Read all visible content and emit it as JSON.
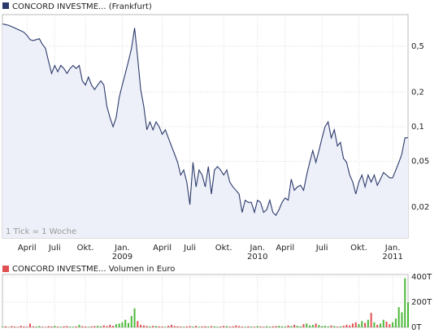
{
  "chart_data": [
    {
      "type": "line",
      "annotation": "1 Tick = 1 Woche",
      "categories": [
        null,
        null,
        null,
        null,
        null,
        null,
        null,
        null,
        "April",
        null,
        null,
        null,
        null,
        null,
        null,
        null,
        null,
        "Juli",
        null,
        null,
        null,
        null,
        null,
        null,
        null,
        null,
        null,
        "Okt.",
        null,
        null,
        null,
        null,
        null,
        null,
        null,
        null,
        null,
        null,
        null,
        "Jan.",
        null,
        null,
        null,
        null,
        null,
        null,
        null,
        null,
        null,
        null,
        null,
        null,
        "April",
        null,
        null,
        null,
        null,
        null,
        null,
        null,
        null,
        "Juli",
        null,
        null,
        null,
        null,
        null,
        null,
        null,
        null,
        null,
        null,
        "Okt.",
        null,
        null,
        null,
        null,
        null,
        null,
        null,
        null,
        null,
        null,
        "Jan.",
        null,
        null,
        null,
        null,
        null,
        null,
        null,
        null,
        "April",
        null,
        null,
        null,
        null,
        null,
        null,
        null,
        null,
        null,
        null,
        null,
        "Juli",
        null,
        null,
        null,
        null,
        null,
        null,
        null,
        null,
        null,
        null,
        null,
        "Okt.",
        null,
        null,
        null,
        null,
        null,
        null,
        null,
        null,
        null,
        null,
        "Jan.",
        null,
        null,
        null,
        null,
        null
      ],
      "category_years": [
        null,
        null,
        null,
        null,
        null,
        null,
        null,
        null,
        null,
        null,
        null,
        null,
        null,
        null,
        null,
        null,
        null,
        null,
        null,
        null,
        null,
        null,
        null,
        null,
        null,
        null,
        null,
        null,
        null,
        null,
        null,
        null,
        null,
        null,
        null,
        null,
        null,
        null,
        null,
        "2009",
        null,
        null,
        null,
        null,
        null,
        null,
        null,
        null,
        null,
        null,
        null,
        null,
        null,
        null,
        null,
        null,
        null,
        null,
        null,
        null,
        null,
        null,
        null,
        null,
        null,
        null,
        null,
        null,
        null,
        null,
        null,
        null,
        null,
        null,
        null,
        null,
        null,
        null,
        null,
        null,
        null,
        null,
        null,
        "2010",
        null,
        null,
        null,
        null,
        null,
        null,
        null,
        null,
        null,
        null,
        null,
        null,
        null,
        null,
        null,
        null,
        null,
        null,
        null,
        null,
        null,
        null,
        null,
        null,
        null,
        null,
        null,
        null,
        null,
        null,
        null,
        null,
        null,
        null,
        null,
        null,
        null,
        null,
        null,
        null,
        null,
        null,
        null,
        "2011",
        null,
        null,
        null,
        null,
        null
      ],
      "series": [
        {
          "name": "CONCORD INVESTME... (Frankfurt)",
          "color": "#2b3a6b",
          "fill": "#eef0f9",
          "values": [
            0.78,
            0.77,
            0.76,
            0.74,
            0.72,
            0.7,
            0.68,
            0.66,
            0.62,
            0.57,
            0.56,
            0.57,
            0.58,
            0.52,
            0.48,
            0.37,
            0.29,
            0.34,
            0.3,
            0.34,
            0.32,
            0.29,
            0.32,
            0.34,
            0.32,
            0.34,
            0.25,
            0.23,
            0.27,
            0.23,
            0.21,
            0.23,
            0.25,
            0.23,
            0.15,
            0.12,
            0.1,
            0.12,
            0.18,
            0.23,
            0.29,
            0.37,
            0.48,
            0.72,
            0.4,
            0.21,
            0.15,
            0.094,
            0.11,
            0.094,
            0.11,
            0.1,
            0.086,
            0.094,
            0.08,
            0.068,
            0.058,
            0.049,
            0.038,
            0.042,
            0.033,
            0.021,
            0.049,
            0.03,
            0.042,
            0.038,
            0.03,
            0.045,
            0.026,
            0.042,
            0.045,
            0.042,
            0.038,
            0.042,
            0.033,
            0.03,
            0.028,
            0.026,
            0.018,
            0.023,
            0.022,
            0.022,
            0.018,
            0.023,
            0.022,
            0.018,
            0.019,
            0.023,
            0.018,
            0.017,
            0.019,
            0.022,
            0.024,
            0.023,
            0.035,
            0.028,
            0.03,
            0.031,
            0.028,
            0.038,
            0.049,
            0.062,
            0.049,
            0.062,
            0.08,
            0.1,
            0.11,
            0.08,
            0.094,
            0.068,
            0.073,
            0.053,
            0.049,
            0.038,
            0.033,
            0.026,
            0.033,
            0.038,
            0.03,
            0.038,
            0.033,
            0.038,
            0.031,
            0.035,
            0.04,
            0.038,
            0.036,
            0.036,
            0.042,
            0.049,
            0.058,
            0.08,
            0.08
          ]
        }
      ],
      "log_scale": true,
      "grid": true,
      "ylim": [
        0.0108,
        0.94
      ],
      "yticks": [
        {
          "value": 0.5,
          "label": "0,5"
        },
        {
          "value": 0.2,
          "label": "0,2"
        },
        {
          "value": 0.1,
          "label": "0,1"
        },
        {
          "value": 0.05,
          "label": "0,05"
        },
        {
          "value": 0.02,
          "label": "0,02"
        }
      ]
    },
    {
      "type": "bar",
      "series": [
        {
          "name": "CONCORD INVESTME... Volumen in Euro",
          "color": "#e05050",
          "up_color": "#4cb83a",
          "values": [
            5000,
            8000,
            3000,
            10000,
            6000,
            4000,
            12000,
            7000,
            5000,
            30000,
            8000,
            6000,
            10000,
            5000,
            4000,
            9000,
            7000,
            12000,
            6000,
            5000,
            8000,
            10000,
            6000,
            5000,
            7000,
            20000,
            9000,
            6000,
            5000,
            8000,
            10000,
            12000,
            8000,
            15000,
            10000,
            20000,
            12000,
            25000,
            30000,
            40000,
            60000,
            35000,
            90000,
            150000,
            50000,
            20000,
            15000,
            10000,
            8000,
            12000,
            10000,
            8000,
            6000,
            5000,
            12000,
            20000,
            10000,
            8000,
            6000,
            5000,
            8000,
            10000,
            6000,
            12000,
            5000,
            7000,
            9000,
            6000,
            10000,
            8000,
            5000,
            7000,
            12000,
            10000,
            6000,
            8000,
            15000,
            10000,
            6000,
            5000,
            8000,
            6000,
            5000,
            10000,
            7000,
            5000,
            9000,
            6000,
            8000,
            10000,
            12000,
            8000,
            6000,
            15000,
            10000,
            20000,
            12000,
            8000,
            25000,
            30000,
            15000,
            20000,
            30000,
            18000,
            10000,
            12000,
            8000,
            15000,
            10000,
            6000,
            8000,
            12000,
            20000,
            15000,
            30000,
            40000,
            25000,
            50000,
            35000,
            60000,
            115000,
            40000,
            20000,
            30000,
            60000,
            45000,
            25000,
            40000,
            70000,
            160000,
            120000,
            390000,
            200000
          ]
        }
      ],
      "grid": true,
      "ylim": [
        0,
        420000
      ],
      "yticks": [
        {
          "value": 0,
          "label": "0T"
        },
        {
          "value": 200000,
          "label": "200T"
        },
        {
          "value": 400000,
          "label": "400T"
        }
      ]
    }
  ]
}
